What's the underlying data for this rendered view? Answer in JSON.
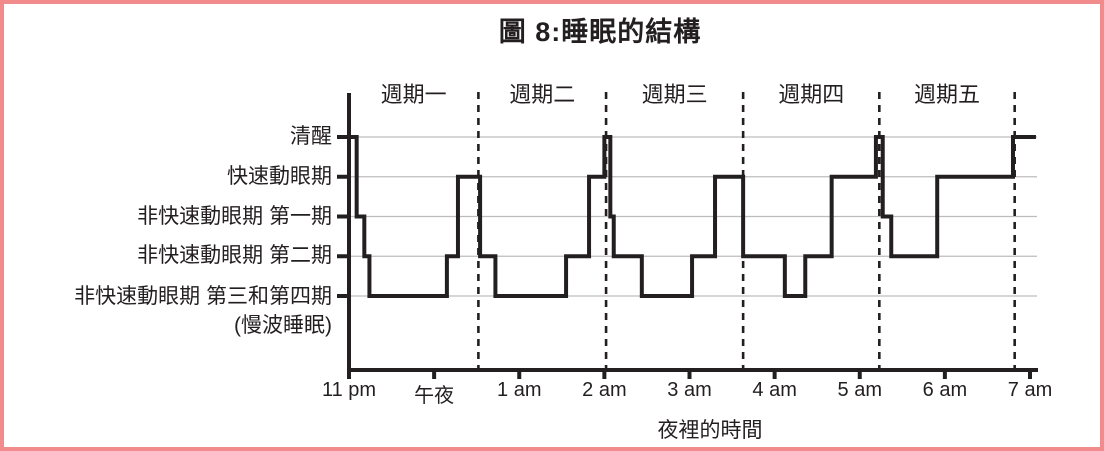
{
  "figure": {
    "title": "圖 8:睡眠的結構"
  },
  "colors": {
    "ink": "#231f20",
    "grid": "#bdbdbd",
    "border": "#f28b8b",
    "background": "#ffffff"
  },
  "chart_data": {
    "type": "line",
    "subtype": "step-hypnogram",
    "title": "圖 8:睡眠的結構",
    "xlabel": "夜裡的時間",
    "x_unit": "hours after 11 pm",
    "legend": false,
    "grid": "horizontal-only",
    "x_range_hours": [
      0,
      8.07
    ],
    "x_ticks": [
      {
        "t": 0,
        "label": "11 pm"
      },
      {
        "t": 1,
        "label": "午夜"
      },
      {
        "t": 2,
        "label": "1 am"
      },
      {
        "t": 3,
        "label": "2 am"
      },
      {
        "t": 4,
        "label": "3 am"
      },
      {
        "t": 5,
        "label": "4 am"
      },
      {
        "t": 6,
        "label": "5 am"
      },
      {
        "t": 7,
        "label": "6 am"
      },
      {
        "t": 8,
        "label": "7 am"
      }
    ],
    "stages": [
      {
        "key": "wake",
        "label": "清醒"
      },
      {
        "key": "rem",
        "label": "快速動眼期"
      },
      {
        "key": "s1",
        "label": "非快速動眼期 第一期"
      },
      {
        "key": "s2",
        "label": "非快速動眼期 第二期"
      },
      {
        "key": "sws",
        "label": "非快速動眼期 第三和第四期",
        "sublabel": "(慢波睡眠)"
      }
    ],
    "cycles": [
      {
        "label": "週期一"
      },
      {
        "label": "週期二"
      },
      {
        "label": "週期三"
      },
      {
        "label": "週期四"
      },
      {
        "label": "週期五"
      }
    ],
    "cycle_boundaries_t": [
      1.52,
      3.02,
      4.63,
      6.23,
      7.82
    ],
    "steps": [
      {
        "t": 0.0,
        "stage": "wake"
      },
      {
        "t": 0.09,
        "stage": "s1"
      },
      {
        "t": 0.18,
        "stage": "s2"
      },
      {
        "t": 0.24,
        "stage": "sws"
      },
      {
        "t": 1.15,
        "stage": "s2"
      },
      {
        "t": 1.28,
        "stage": "rem"
      },
      {
        "t": 1.54,
        "stage": "s2"
      },
      {
        "t": 1.72,
        "stage": "sws"
      },
      {
        "t": 2.55,
        "stage": "s2"
      },
      {
        "t": 2.82,
        "stage": "rem"
      },
      {
        "t": 3.0,
        "stage": "wake"
      },
      {
        "t": 3.07,
        "stage": "s1"
      },
      {
        "t": 3.11,
        "stage": "s2"
      },
      {
        "t": 3.44,
        "stage": "sws"
      },
      {
        "t": 4.03,
        "stage": "s2"
      },
      {
        "t": 4.3,
        "stage": "rem"
      },
      {
        "t": 4.63,
        "stage": "s2"
      },
      {
        "t": 5.12,
        "stage": "sws"
      },
      {
        "t": 5.36,
        "stage": "s2"
      },
      {
        "t": 5.67,
        "stage": "rem"
      },
      {
        "t": 6.19,
        "stage": "wake"
      },
      {
        "t": 6.27,
        "stage": "s1"
      },
      {
        "t": 6.37,
        "stage": "s2"
      },
      {
        "t": 6.91,
        "stage": "rem"
      },
      {
        "t": 7.8,
        "stage": "wake"
      }
    ],
    "end_t": 8.07
  }
}
